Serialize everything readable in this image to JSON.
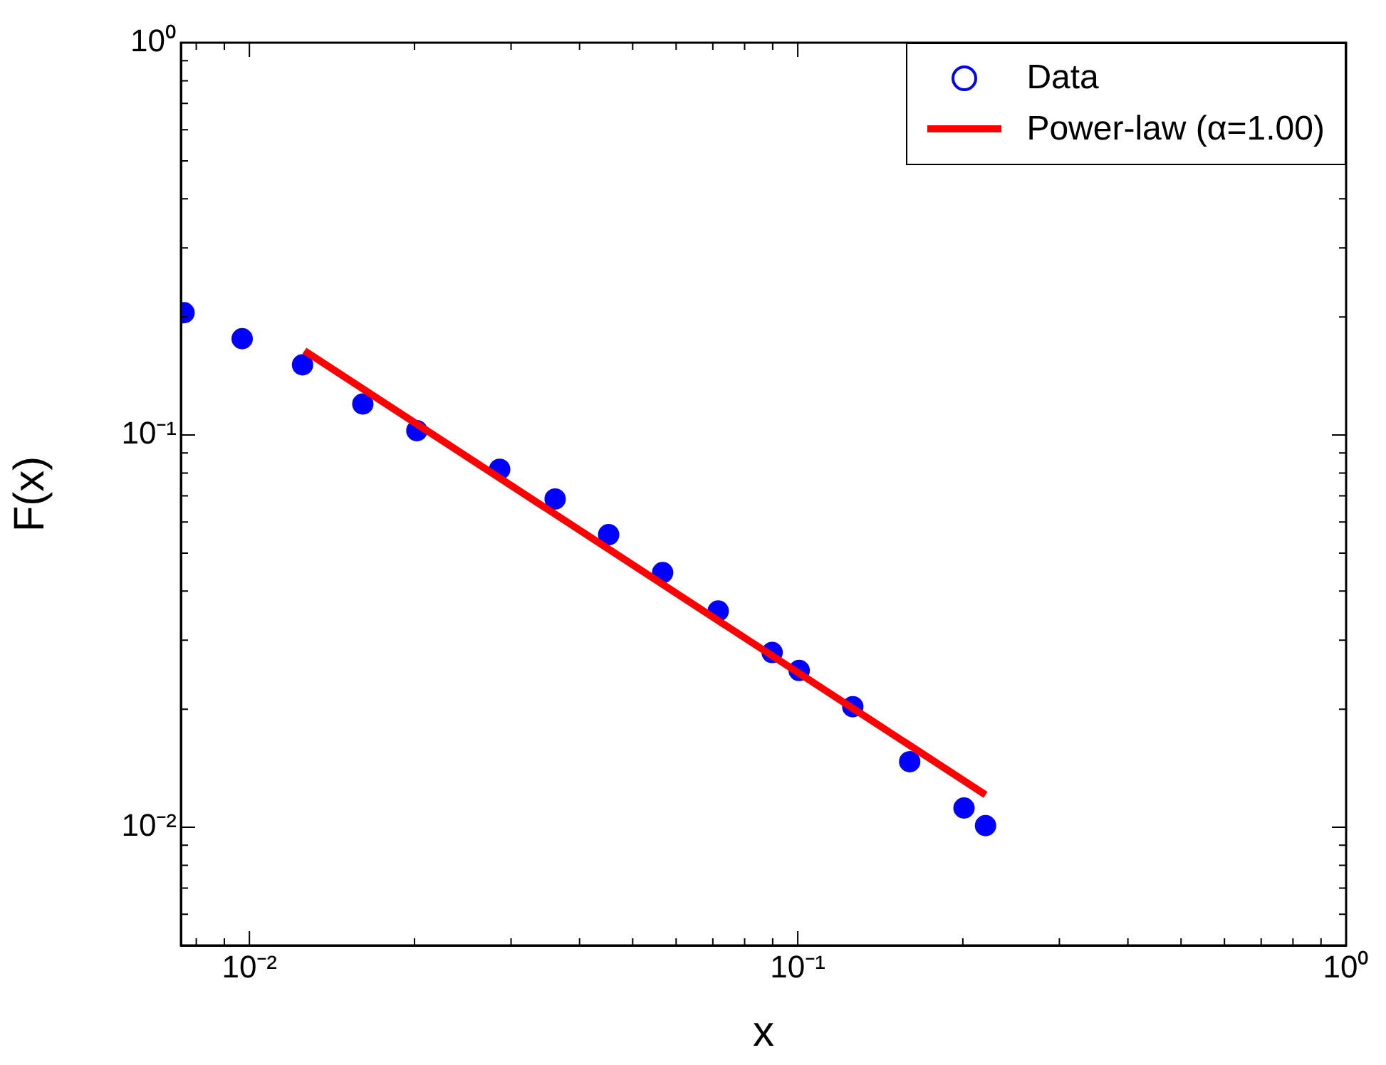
{
  "chart_data": {
    "type": "scatter",
    "xlabel": "x",
    "ylabel": "F(x)",
    "log": "xy",
    "xlim": [
      0.0075,
      1
    ],
    "ylim": [
      0.005,
      1
    ],
    "xticks": [
      {
        "value": 0.008,
        "label": null
      },
      {
        "value": 0.009,
        "label": null
      },
      {
        "value": 0.01,
        "label": "10⁻²"
      },
      {
        "value": 0.02,
        "label": null
      },
      {
        "value": 0.03,
        "label": null
      },
      {
        "value": 0.04,
        "label": null
      },
      {
        "value": 0.05,
        "label": null
      },
      {
        "value": 0.06,
        "label": null
      },
      {
        "value": 0.07,
        "label": null
      },
      {
        "value": 0.08,
        "label": null
      },
      {
        "value": 0.09,
        "label": null
      },
      {
        "value": 0.1,
        "label": "10⁻¹"
      },
      {
        "value": 0.2,
        "label": null
      },
      {
        "value": 0.3,
        "label": null
      },
      {
        "value": 0.4,
        "label": null
      },
      {
        "value": 0.5,
        "label": null
      },
      {
        "value": 0.6,
        "label": null
      },
      {
        "value": 0.7,
        "label": null
      },
      {
        "value": 0.8,
        "label": null
      },
      {
        "value": 0.9,
        "label": null
      },
      {
        "value": 1,
        "label": "10⁰"
      }
    ],
    "yticks": [
      {
        "value": 0.006,
        "label": null
      },
      {
        "value": 0.007,
        "label": null
      },
      {
        "value": 0.008,
        "label": null
      },
      {
        "value": 0.009,
        "label": null
      },
      {
        "value": 0.01,
        "label": "10⁻²"
      },
      {
        "value": 0.02,
        "label": null
      },
      {
        "value": 0.03,
        "label": null
      },
      {
        "value": 0.04,
        "label": null
      },
      {
        "value": 0.05,
        "label": null
      },
      {
        "value": 0.06,
        "label": null
      },
      {
        "value": 0.07,
        "label": null
      },
      {
        "value": 0.08,
        "label": null
      },
      {
        "value": 0.09,
        "label": null
      },
      {
        "value": 0.1,
        "label": "10⁻¹"
      },
      {
        "value": 0.2,
        "label": null
      },
      {
        "value": 0.3,
        "label": null
      },
      {
        "value": 0.4,
        "label": null
      },
      {
        "value": 0.5,
        "label": null
      },
      {
        "value": 0.6,
        "label": null
      },
      {
        "value": 0.7,
        "label": null
      },
      {
        "value": 0.8,
        "label": null
      },
      {
        "value": 0.9,
        "label": null
      },
      {
        "value": 1,
        "label": "10⁰"
      }
    ],
    "grid": false,
    "legend": "top right",
    "marker": "circle",
    "series": [
      {
        "name": "Data",
        "color": "#0000ff",
        "x": [
          0.0076,
          0.0097,
          0.0125,
          0.0161,
          0.0202,
          0.0286,
          0.0361,
          0.0452,
          0.0567,
          0.0716,
          0.0898,
          0.1006,
          0.126,
          0.16,
          0.201,
          0.22
        ],
        "values": [
          0.205,
          0.176,
          0.151,
          0.12,
          0.1026,
          0.0818,
          0.0687,
          0.0557,
          0.0446,
          0.0356,
          0.0279,
          0.0251,
          0.0203,
          0.0147,
          0.0112,
          0.0101
        ]
      },
      {
        "name": "Power-law (α=1.00)",
        "type": "line",
        "marker": "none",
        "line_style": "solid",
        "color": "#ff0000",
        "x": [
          0.0126,
          0.22
        ],
        "values": [
          0.164,
          0.0121
        ]
      }
    ]
  }
}
